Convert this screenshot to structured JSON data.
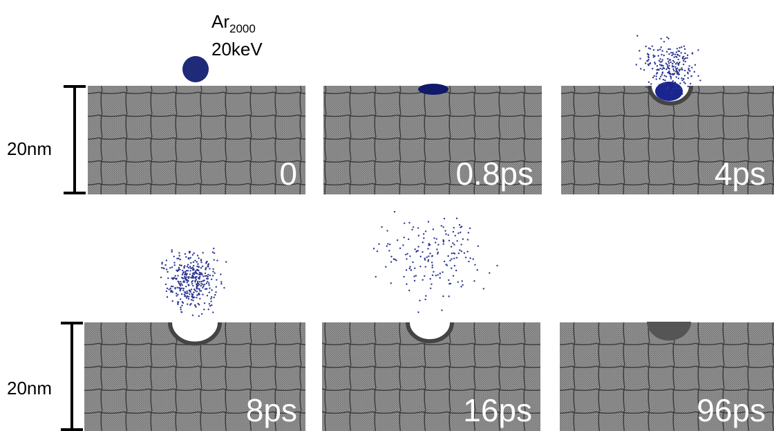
{
  "projectile": {
    "symbol": "Ar",
    "subscript": "2000",
    "energy": "20keV"
  },
  "scale_bars": [
    "20nm",
    "20nm"
  ],
  "panels": [
    {
      "label": "0"
    },
    {
      "label": "0.8ps"
    },
    {
      "label": "4ps"
    },
    {
      "label": "8ps"
    },
    {
      "label": "16ps"
    },
    {
      "label": "96ps"
    }
  ]
}
